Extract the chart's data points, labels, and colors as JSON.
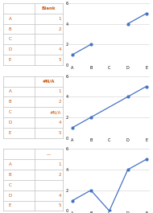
{
  "table1_header": "Blank",
  "table2_header": "#N/A",
  "table3_header": "...",
  "categories": [
    "A",
    "B",
    "C",
    "D",
    "E"
  ],
  "values1": [
    1,
    2,
    null,
    4,
    5
  ],
  "values2_connected": [
    1,
    2,
    null,
    4,
    5
  ],
  "values3": [
    1,
    2,
    0,
    4,
    5
  ],
  "line_color": "#4472C4",
  "table_color": "#C55A11",
  "bg_color": "#FFFFFF",
  "grid_color": "#D9D9D9",
  "border_color": "#BFBFBF",
  "ylim": [
    0,
    6
  ],
  "yticks": [
    0,
    2,
    4,
    6
  ],
  "table_rows": [
    "A",
    "B",
    "C",
    "D",
    "E"
  ],
  "row_vals1": [
    "1",
    "2",
    "",
    "4",
    "5"
  ],
  "row_vals2": [
    "1",
    "2",
    "#N/A",
    "4",
    "5"
  ],
  "row_vals3": [
    "1",
    "2",
    "",
    "4",
    "5"
  ]
}
